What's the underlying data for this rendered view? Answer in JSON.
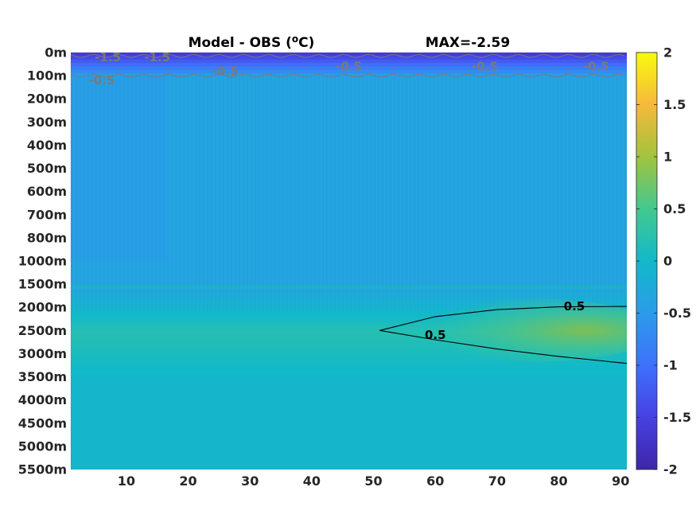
{
  "chart_data": {
    "type": "heatmap",
    "title": "Model - OBS (oC)",
    "title_parts": {
      "prefix": "Model - OBS (",
      "superscript": "o",
      "suffix": "C)"
    },
    "subtitle": "MAX=-2.59",
    "xlabel": "",
    "ylabel": "",
    "xlim": [
      1,
      91
    ],
    "x_ticks": [
      10,
      20,
      30,
      40,
      50,
      60,
      70,
      80,
      90
    ],
    "y_tick_labels": [
      "0m",
      "100m",
      "200m",
      "300m",
      "400m",
      "500m",
      "600m",
      "700m",
      "800m",
      "1000m",
      "1500m",
      "2000m",
      "2500m",
      "3000m",
      "3500m",
      "4000m",
      "4500m",
      "5000m",
      "5500m"
    ],
    "y_axis_direction": "depth increasing downward",
    "colorbar": {
      "colormap": "parula",
      "range": [
        -2,
        2
      ],
      "ticks": [
        -2,
        -1.5,
        -1,
        -0.5,
        0,
        0.5,
        1,
        1.5,
        2
      ],
      "tick_labels": [
        "-2",
        "-1.5",
        "-1",
        "-0.5",
        "0",
        "0.5",
        "1",
        "1.5",
        "2"
      ],
      "location": "right"
    },
    "field_description": {
      "surface_0_100m": -1.6,
      "layer_100_1500m": -0.35,
      "layer_1500_3500m": 0.2,
      "layer_3500_5500m": -0.05,
      "core_max_2500m_x80_90": 0.95
    },
    "contours": [
      {
        "level": 0.5,
        "label": "0.5",
        "color": "#000000",
        "upper_branch": [
          [
            51,
            2500
          ],
          [
            60,
            2200
          ],
          [
            70,
            2050
          ],
          [
            80,
            1990
          ],
          [
            91,
            1980
          ]
        ],
        "lower_branch": [
          [
            51,
            2500
          ],
          [
            60,
            2700
          ],
          [
            70,
            2900
          ],
          [
            80,
            3060
          ],
          [
            91,
            3210
          ]
        ]
      },
      {
        "level": -0.5,
        "label": "-0.5",
        "color": "#7a7a7a",
        "depth": 100
      },
      {
        "level": -1.5,
        "label": "-1.5",
        "color": "#7a7a7a",
        "depth": 15
      }
    ],
    "contour_labels": [
      {
        "text": "0.5",
        "x": 82.5,
        "y": 1980,
        "color": "#000000"
      },
      {
        "text": "0.5",
        "x": 60,
        "y": 2600,
        "color": "#000000"
      },
      {
        "text": "-1.5",
        "x": 7,
        "y": 20,
        "color": "#7a7a7a"
      },
      {
        "text": "-1.5",
        "x": 15,
        "y": 20,
        "color": "#7a7a7a"
      },
      {
        "text": "-0.5",
        "x": 6,
        "y": 120,
        "color": "#7a7a7a"
      },
      {
        "text": "-0.5",
        "x": 26,
        "y": 80,
        "color": "#7a7a7a"
      },
      {
        "text": "-0.5",
        "x": 46,
        "y": 60,
        "color": "#7a7a7a"
      },
      {
        "text": "-0.5",
        "x": 68,
        "y": 60,
        "color": "#7a7a7a"
      },
      {
        "text": "-0.5",
        "x": 86,
        "y": 60,
        "color": "#7a7a7a"
      }
    ],
    "grid": false,
    "legend": "none"
  }
}
